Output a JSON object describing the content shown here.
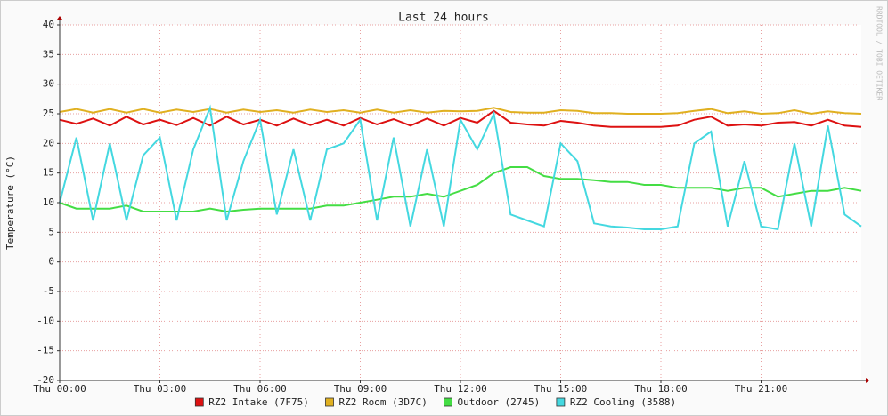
{
  "chart_data": {
    "type": "line",
    "title": "Last 24 hours",
    "y_label": "Temperature (°C)",
    "watermark": "RRDTOOL / TOBI OETIKER",
    "x": [
      0,
      0.5,
      1,
      1.5,
      2,
      2.5,
      3,
      3.5,
      4,
      4.5,
      5,
      5.5,
      6,
      6.5,
      7,
      7.5,
      8,
      8.5,
      9,
      9.5,
      10,
      10.5,
      11,
      11.5,
      12,
      12.5,
      13,
      13.5,
      14,
      14.5,
      15,
      15.5,
      16,
      16.5,
      17,
      17.5,
      18,
      18.5,
      19,
      19.5,
      20,
      20.5,
      21,
      21.5,
      22,
      22.5,
      23,
      23.5,
      24
    ],
    "xlim": [
      0,
      24
    ],
    "xticks": [
      {
        "value": 0,
        "label": "Thu 00:00"
      },
      {
        "value": 3,
        "label": "Thu 03:00"
      },
      {
        "value": 6,
        "label": "Thu 06:00"
      },
      {
        "value": 9,
        "label": "Thu 09:00"
      },
      {
        "value": 12,
        "label": "Thu 12:00"
      },
      {
        "value": 15,
        "label": "Thu 15:00"
      },
      {
        "value": 18,
        "label": "Thu 18:00"
      },
      {
        "value": 21,
        "label": "Thu 21:00"
      }
    ],
    "ylim": [
      -20,
      40
    ],
    "yticks": [
      -20,
      -15,
      -10,
      -5,
      0,
      5,
      10,
      15,
      20,
      25,
      30,
      35,
      40
    ],
    "grid": true,
    "series": [
      {
        "name": "RZ2 Intake (7F75)",
        "color": "#dd1111",
        "values": [
          24,
          23.3,
          24.2,
          23,
          24.5,
          23.2,
          24,
          23.1,
          24.3,
          23,
          24.5,
          23.2,
          24,
          23,
          24.2,
          23.1,
          24,
          23,
          24.3,
          23.2,
          24.1,
          23,
          24.2,
          23,
          24.3,
          23.5,
          25.5,
          23.5,
          23.2,
          23,
          23.8,
          23.5,
          23,
          22.8,
          22.8,
          22.8,
          22.8,
          23,
          24,
          24.5,
          23,
          23.2,
          23,
          23.5,
          23.6,
          23,
          24,
          23,
          22.8
        ]
      },
      {
        "name": "RZ2 Room (3D7C)",
        "color": "#e0b020",
        "values": [
          25.3,
          25.8,
          25.2,
          25.8,
          25.2,
          25.8,
          25.2,
          25.7,
          25.3,
          25.8,
          25.2,
          25.7,
          25.3,
          25.6,
          25.2,
          25.7,
          25.3,
          25.6,
          25.2,
          25.7,
          25.2,
          25.6,
          25.2,
          25.5,
          25.4,
          25.5,
          26,
          25.3,
          25.2,
          25.2,
          25.6,
          25.5,
          25.1,
          25.1,
          25,
          25,
          25,
          25.1,
          25.5,
          25.8,
          25.1,
          25.4,
          25,
          25.1,
          25.6,
          25,
          25.4,
          25.1,
          25
        ]
      },
      {
        "name": "Outdoor (2745)",
        "color": "#44dd44",
        "values": [
          10,
          9,
          9,
          9,
          9.5,
          8.5,
          8.5,
          8.5,
          8.5,
          9,
          8.5,
          8.8,
          9,
          9,
          9,
          9,
          9.5,
          9.5,
          10,
          10.5,
          11,
          11,
          11.5,
          11,
          12,
          13,
          15,
          16,
          16,
          14.5,
          14,
          14,
          13.8,
          13.5,
          13.5,
          13,
          13,
          12.5,
          12.5,
          12.5,
          12,
          12.5,
          12.5,
          11,
          11.5,
          12,
          12,
          12.5,
          12
        ]
      },
      {
        "name": "RZ2 Cooling (3588)",
        "color": "#44d8e0",
        "values": [
          10,
          21,
          7,
          20,
          7,
          18,
          21,
          7,
          19,
          26,
          7,
          17,
          24,
          8,
          19,
          7,
          19,
          20,
          24,
          7,
          21,
          6,
          19,
          6,
          24,
          19,
          25,
          8,
          7,
          6,
          20,
          17,
          6.5,
          6,
          5.8,
          5.5,
          5.5,
          6,
          20,
          22,
          6,
          17,
          6,
          5.5,
          20,
          6,
          23,
          8,
          6
        ]
      }
    ]
  }
}
